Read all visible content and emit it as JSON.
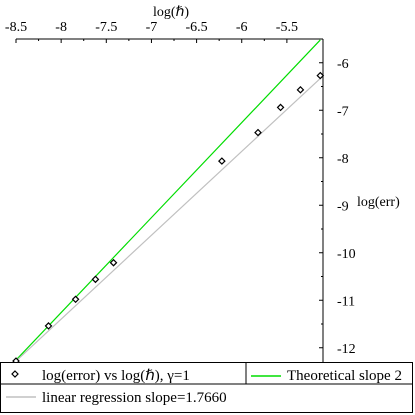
{
  "chart_data": {
    "type": "scatter",
    "title": "",
    "xlabel": "log(ℏ)",
    "ylabel": "log(err)",
    "xlim": [
      -8.5,
      -5.1
    ],
    "ylim": [
      -12.3,
      -5.5
    ],
    "x_axis_position": "top",
    "y_axis_position": "right",
    "grid": false,
    "legend_position": "bottom",
    "x_ticks": [
      {
        "value": -8.5,
        "label": "-8.5"
      },
      {
        "value": -8,
        "label": "-8"
      },
      {
        "value": -7.5,
        "label": "-7.5"
      },
      {
        "value": -7,
        "label": "-7"
      },
      {
        "value": -6.5,
        "label": "-6.5"
      },
      {
        "value": -6,
        "label": "-6"
      },
      {
        "value": -5.5,
        "label": "-5.5"
      }
    ],
    "y_ticks": [
      {
        "value": -6,
        "label": "-6"
      },
      {
        "value": -7,
        "label": "-7"
      },
      {
        "value": -8,
        "label": "-8"
      },
      {
        "value": -9,
        "label": "-9"
      },
      {
        "value": -10,
        "label": "-10"
      },
      {
        "value": -11,
        "label": "-11"
      },
      {
        "value": -12,
        "label": "-12"
      }
    ],
    "series": [
      {
        "name": "log(error) vs log(ℏ), γ=1",
        "kind": "points",
        "marker": "diamond",
        "color": "#000000",
        "x": [
          -8.5,
          -8.14,
          -7.84,
          -7.62,
          -7.42,
          -6.22,
          -5.82,
          -5.57,
          -5.35,
          -5.13
        ],
        "y": [
          -12.28,
          -11.54,
          -10.98,
          -10.56,
          -10.21,
          -8.07,
          -7.47,
          -6.94,
          -6.57,
          -6.27
        ]
      },
      {
        "name": "Theoretical slope 2",
        "kind": "line",
        "color": "#00dd00",
        "x": [
          -8.5,
          -5.13
        ],
        "y": [
          -12.26,
          -5.52
        ]
      },
      {
        "name": "linear regression slope=1.7660",
        "kind": "line",
        "color": "#c0c0c0",
        "x": [
          -8.5,
          -5.13
        ],
        "y": [
          -12.28,
          -6.33
        ]
      }
    ]
  },
  "legend": {
    "entries": [
      {
        "label": "log(error) vs log(ℏ), γ=1"
      },
      {
        "label": "Theoretical slope 2"
      },
      {
        "label": "linear regression slope=1.7660"
      }
    ]
  }
}
